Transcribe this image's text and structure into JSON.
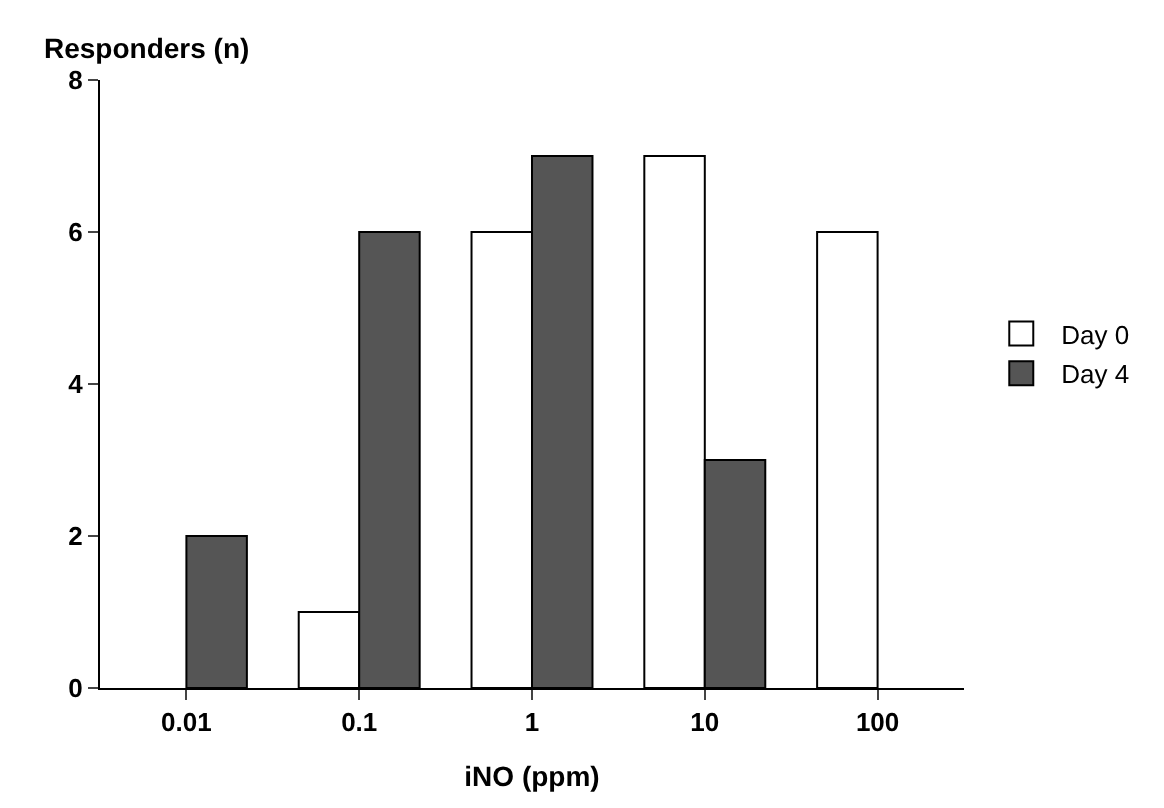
{
  "chart_data": {
    "type": "bar",
    "xlabel": "iNO (ppm)",
    "ylabel": "Responders (n)",
    "categories": [
      "0.01",
      "0.1",
      "1",
      "10",
      "100"
    ],
    "series": [
      {
        "name": "Day 0",
        "color": "#ffffff",
        "values": [
          null,
          1,
          6,
          7,
          6
        ]
      },
      {
        "name": "Day 4",
        "color": "#555555",
        "values": [
          2,
          6,
          7,
          3,
          null
        ]
      }
    ],
    "ylim": [
      0,
      8
    ],
    "yticks": [
      0,
      2,
      4,
      6,
      8
    ],
    "legend": "right"
  }
}
